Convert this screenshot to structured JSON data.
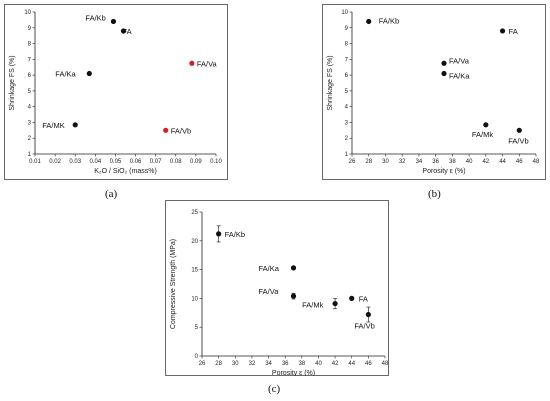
{
  "panels": [
    {
      "panel_label": "(a)",
      "chart_data": {
        "type": "scatter",
        "xlabel": "K₂O / SiO₂  (mass%)",
        "ylabel": "Shrinkage FS (%)",
        "xlim": [
          0.01,
          0.1
        ],
        "ylim": [
          1,
          10
        ],
        "xticks": [
          "0.01",
          "0.02",
          "0.03",
          "0.04",
          "0.05",
          "0.06",
          "0.07",
          "0.08",
          "0.09",
          "0.10"
        ],
        "yticks": [
          "1",
          "2",
          "3",
          "4",
          "5",
          "6",
          "7",
          "8",
          "9",
          "10"
        ],
        "points": [
          {
            "label": "FA/Kb",
            "x": 0.049,
            "y": 9.4,
            "color": "#111111"
          },
          {
            "label": "FA",
            "x": 0.054,
            "y": 8.8,
            "color": "#111111"
          },
          {
            "label": "FA/Ka",
            "x": 0.037,
            "y": 6.1,
            "color": "#111111"
          },
          {
            "label": "FA/Va",
            "x": 0.088,
            "y": 6.75,
            "color": "#d42020"
          },
          {
            "label": "FA/MK",
            "x": 0.03,
            "y": 2.85,
            "color": "#111111"
          },
          {
            "label": "FA/Vb",
            "x": 0.075,
            "y": 2.5,
            "color": "#d42020"
          }
        ],
        "grid": false
      }
    },
    {
      "panel_label": "(b)",
      "chart_data": {
        "type": "scatter",
        "xlabel": "Porosity ε  (%)",
        "ylabel": "Shrinkage FS (%)",
        "xlim": [
          26,
          48
        ],
        "ylim": [
          1,
          10
        ],
        "xticks": [
          "26",
          "28",
          "30",
          "32",
          "34",
          "36",
          "38",
          "40",
          "42",
          "44",
          "46",
          "48"
        ],
        "yticks": [
          "1",
          "2",
          "3",
          "4",
          "5",
          "6",
          "7",
          "8",
          "9",
          "10"
        ],
        "points": [
          {
            "label": "FA/Kb",
            "x": 28,
            "y": 9.4,
            "color": "#111111"
          },
          {
            "label": "FA",
            "x": 44,
            "y": 8.8,
            "color": "#111111"
          },
          {
            "label": "FA/Va",
            "x": 37,
            "y": 6.75,
            "color": "#111111"
          },
          {
            "label": "FA/Ka",
            "x": 37,
            "y": 6.1,
            "color": "#111111"
          },
          {
            "label": "FA/Mk",
            "x": 42,
            "y": 2.85,
            "color": "#111111"
          },
          {
            "label": "FA/Vb",
            "x": 46,
            "y": 2.5,
            "color": "#111111"
          }
        ],
        "grid": false
      }
    },
    {
      "panel_label": "(c)",
      "chart_data": {
        "type": "scatter",
        "xlabel": "Porosity ε  (%)",
        "ylabel": "Compressive Strength (MPa)",
        "xlim": [
          26,
          48
        ],
        "ylim": [
          0,
          25
        ],
        "xticks": [
          "26",
          "28",
          "30",
          "32",
          "34",
          "36",
          "38",
          "40",
          "42",
          "44",
          "46",
          "48"
        ],
        "yticks": [
          "0",
          "5",
          "10",
          "15",
          "20",
          "25"
        ],
        "points": [
          {
            "label": "FA/Kb",
            "x": 28,
            "y": 21.2,
            "err": 1.4,
            "color": "#111111"
          },
          {
            "label": "FA/Ka",
            "x": 37,
            "y": 15.3,
            "err": 0,
            "color": "#111111"
          },
          {
            "label": "FA/Va",
            "x": 37,
            "y": 10.4,
            "err": 0.5,
            "color": "#111111"
          },
          {
            "label": "FA/Mk",
            "x": 42,
            "y": 9.1,
            "err": 0.9,
            "color": "#111111"
          },
          {
            "label": "FA",
            "x": 44,
            "y": 10.0,
            "err": 0,
            "color": "#111111"
          },
          {
            "label": "FA/Vb",
            "x": 46,
            "y": 7.2,
            "err": 1.3,
            "color": "#111111"
          }
        ],
        "grid": false
      }
    }
  ]
}
